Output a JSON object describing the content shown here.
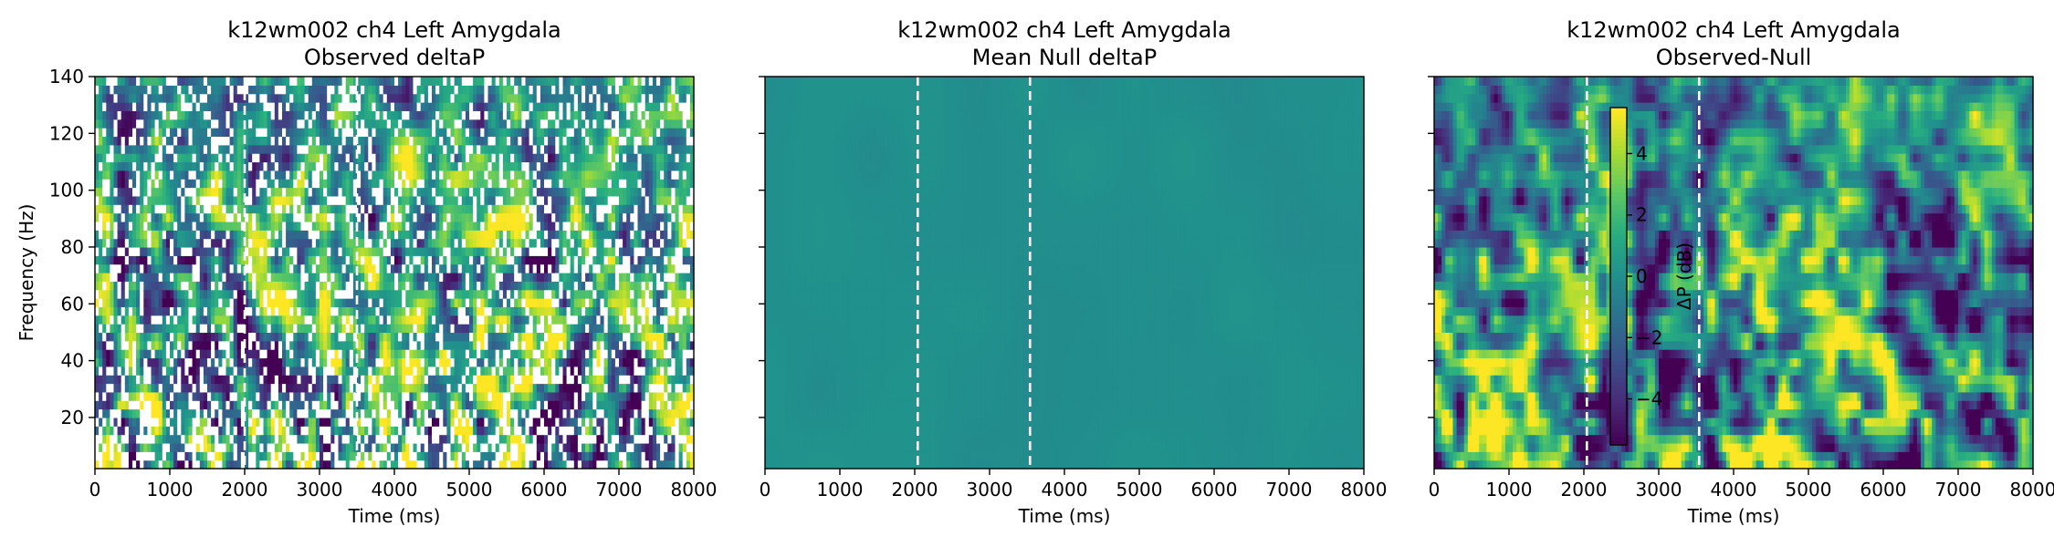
{
  "chart_data": [
    {
      "type": "heatmap",
      "title": "k12wm002 ch4 Left Amygdala",
      "subtitle": "Observed deltaP",
      "xlabel": "Time (ms)",
      "ylabel": "Frequency (Hz)",
      "xlim": [
        0,
        8000
      ],
      "ylim": [
        2,
        140
      ],
      "xticks": [
        "0",
        "1000",
        "2000",
        "3000",
        "4000",
        "5000",
        "6000",
        "7000",
        "8000"
      ],
      "yticks": [
        "20",
        "40",
        "60",
        "80",
        "100",
        "120",
        "140"
      ],
      "event_markers_ms": [
        2000,
        3500
      ],
      "colormap": "viridis",
      "masked_cells": "white (non-significant)"
    },
    {
      "type": "heatmap",
      "title": "k12wm002 ch4 Left Amygdala",
      "subtitle": "Mean Null deltaP",
      "xlabel": "Time (ms)",
      "ylabel": "",
      "xlim": [
        0,
        8000
      ],
      "ylim": [
        2,
        140
      ],
      "xticks": [
        "0",
        "1000",
        "2000",
        "3000",
        "4000",
        "5000",
        "6000",
        "7000",
        "8000"
      ],
      "event_markers_ms": [
        2040,
        3540
      ],
      "colormap": "viridis",
      "uniform_value_db": 0
    },
    {
      "type": "heatmap",
      "title": "k12wm002 ch4 Left Amygdala",
      "subtitle": "Observed-Null",
      "xlabel": "Time (ms)",
      "ylabel": "",
      "xlim": [
        0,
        8000
      ],
      "ylim": [
        2,
        140
      ],
      "xticks": [
        "0",
        "1000",
        "2000",
        "3000",
        "4000",
        "5000",
        "6000",
        "7000",
        "8000"
      ],
      "event_markers_ms": [
        2040,
        3540
      ],
      "colormap": "viridis",
      "colorbar": {
        "label": "ΔP (dB)",
        "range": [
          -5.5,
          5.5
        ],
        "ticks": [
          -4,
          -2,
          0,
          2,
          4
        ],
        "tick_labels": [
          "−4",
          "−2",
          "0",
          "2",
          "4"
        ]
      }
    }
  ]
}
